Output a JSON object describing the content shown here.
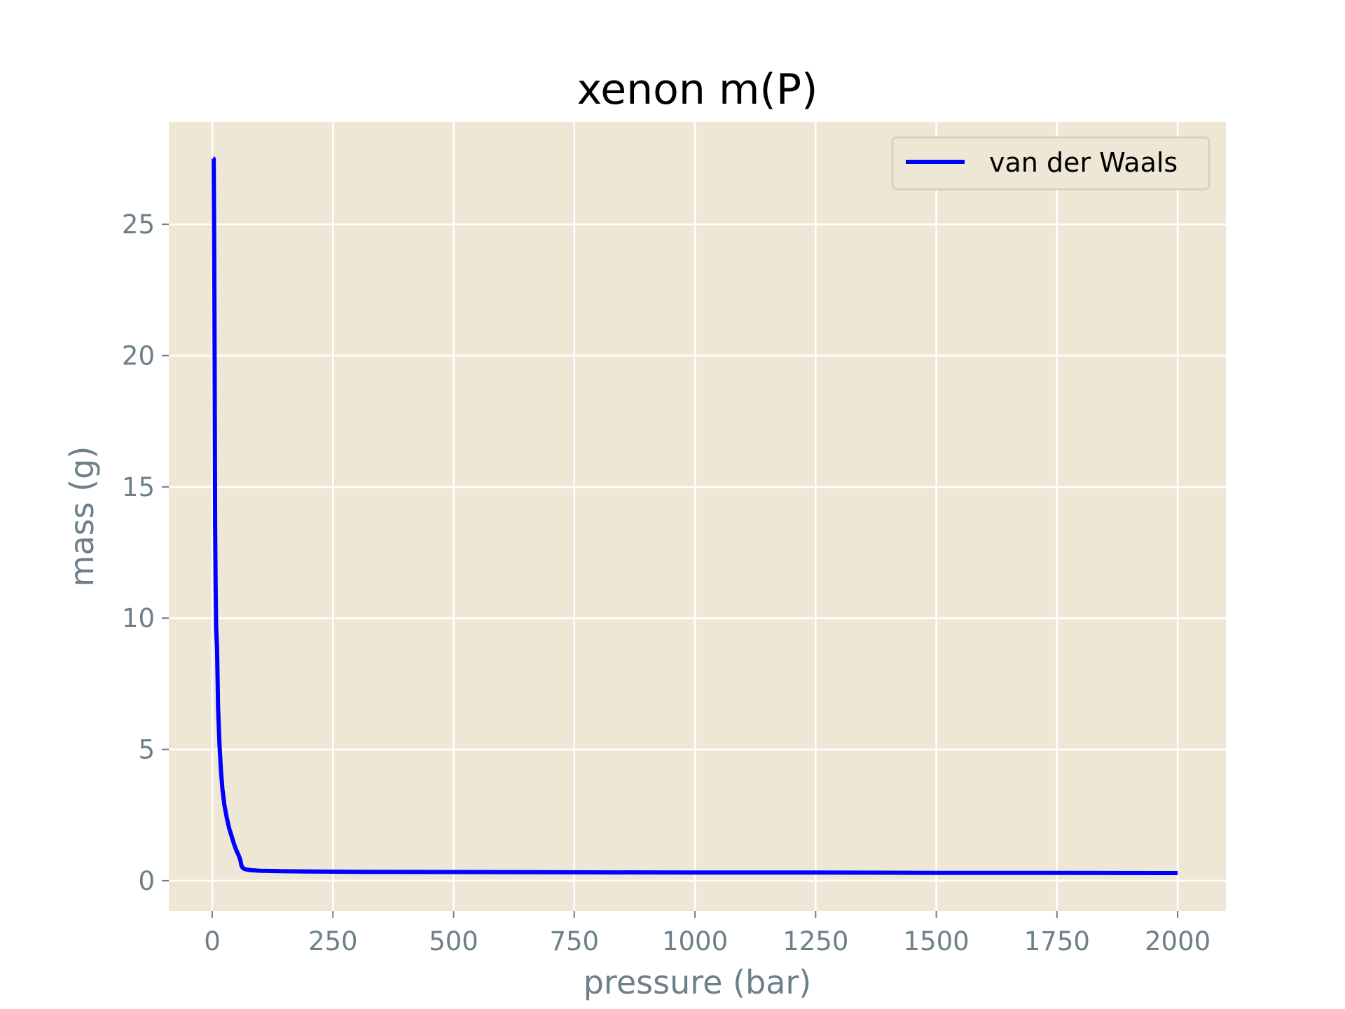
{
  "chart_data": {
    "type": "line",
    "title": "xenon m(P)",
    "xlabel": "pressure (bar)",
    "ylabel": "mass (g)",
    "xlim": [
      -90,
      2100
    ],
    "ylim": [
      -1.15,
      28.9
    ],
    "xticks": [
      0,
      250,
      500,
      750,
      1000,
      1250,
      1500,
      1750,
      2000
    ],
    "xtick_labels": [
      "0",
      "250",
      "500",
      "750",
      "1000",
      "1250",
      "1500",
      "1750",
      "2000"
    ],
    "yticks": [
      0,
      5,
      10,
      15,
      20,
      25
    ],
    "ytick_labels": [
      "0",
      "5",
      "10",
      "15",
      "20",
      "25"
    ],
    "grid": true,
    "legend_position": "top-right",
    "colors": {
      "plot_background": "#eee7d6",
      "grid": "#ffffff",
      "tick": "#6d7f89",
      "line": "#0000ff"
    },
    "series": [
      {
        "name": "van der Waals",
        "color": "#0000ff",
        "x": [
          2,
          3,
          4,
          5,
          6,
          7,
          8,
          10,
          12,
          15,
          18,
          21,
          25,
          30,
          35,
          40,
          45,
          50,
          55,
          58,
          60,
          62,
          65,
          70,
          80,
          100,
          150,
          200,
          300,
          500,
          750,
          1000,
          1250,
          1500,
          1750,
          2000
        ],
        "y": [
          27.5,
          27.5,
          24.0,
          19.0,
          13.6,
          11.2,
          9.7,
          8.8,
          6.6,
          5.2,
          4.2,
          3.5,
          2.9,
          2.4,
          2.0,
          1.7,
          1.4,
          1.15,
          0.95,
          0.8,
          0.6,
          0.52,
          0.46,
          0.43,
          0.4,
          0.38,
          0.36,
          0.35,
          0.34,
          0.33,
          0.32,
          0.31,
          0.31,
          0.3,
          0.3,
          0.29
        ]
      }
    ]
  }
}
